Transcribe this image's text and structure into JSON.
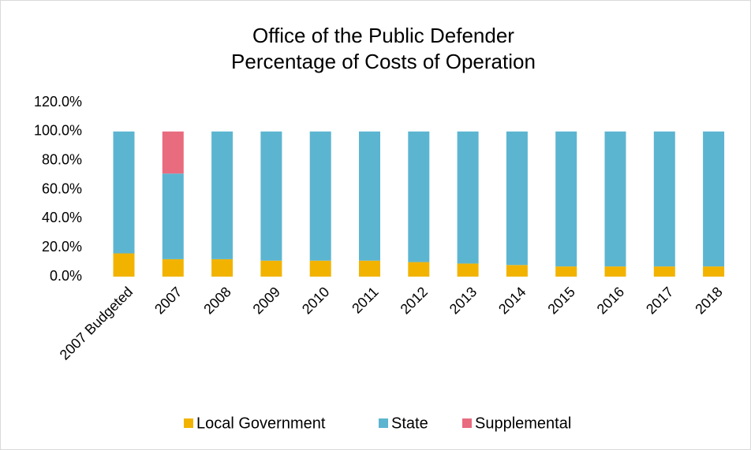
{
  "chart_data": {
    "type": "stacked_bar",
    "title": [
      "Office of the Public Defender",
      "Percentage of Costs of Operation"
    ],
    "categories": [
      "2007 Budgeted",
      "2007",
      "2008",
      "2009",
      "2010",
      "2011",
      "2012",
      "2013",
      "2014",
      "2015",
      "2016",
      "2017",
      "2018"
    ],
    "series": [
      {
        "name": "Local Government",
        "color": "#f2b300",
        "values": [
          16,
          12,
          12,
          11,
          11,
          11,
          10,
          9,
          8,
          7,
          7,
          7,
          7
        ]
      },
      {
        "name": "State",
        "color": "#5cb5d0",
        "values": [
          84,
          59,
          88,
          89,
          89,
          89,
          90,
          91,
          92,
          93,
          93,
          93,
          93
        ]
      },
      {
        "name": "Supplemental",
        "color": "#e96b7e",
        "values": [
          0,
          29,
          0,
          0,
          0,
          0,
          0,
          0,
          0,
          0,
          0,
          0,
          0
        ]
      }
    ],
    "ylim": [
      0,
      120
    ],
    "yticks": [
      {
        "value": 0,
        "label": "0.0%"
      },
      {
        "value": 20,
        "label": "20.0%"
      },
      {
        "value": 40,
        "label": "40.0%"
      },
      {
        "value": 60,
        "label": "60.0%"
      },
      {
        "value": 80,
        "label": "80.0%"
      },
      {
        "value": 100,
        "label": "100.0%"
      },
      {
        "value": 120,
        "label": "120.0%"
      }
    ],
    "grid": false,
    "legend": "bottom"
  }
}
